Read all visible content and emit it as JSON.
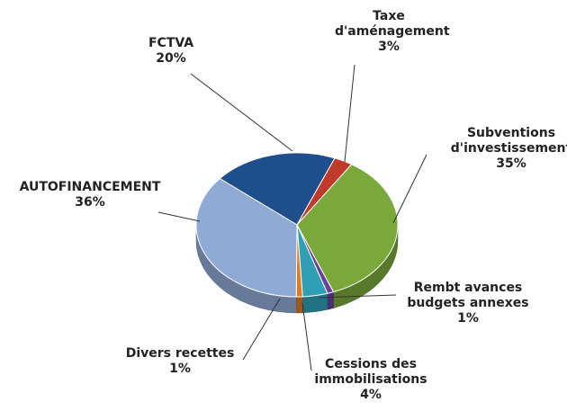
{
  "chart_data": {
    "type": "pie3d",
    "categories": [
      "FCTVA",
      "Taxe d'aménagement",
      "Subventions d'investissement",
      "Rembt avances budgets annexes",
      "Cessions des immobilisations",
      "Divers recettes",
      "AUTOFINANCEMENT"
    ],
    "values": [
      20,
      3,
      35,
      1,
      4,
      1,
      36
    ],
    "value_labels": [
      "20%",
      "3%",
      "35%",
      "1%",
      "4%",
      "1%",
      "36%"
    ],
    "colors": [
      "#1f4e8c",
      "#c0392b",
      "#7aa83a",
      "#6b3fa0",
      "#2e9fb5",
      "#e07b20",
      "#8faad4"
    ]
  }
}
